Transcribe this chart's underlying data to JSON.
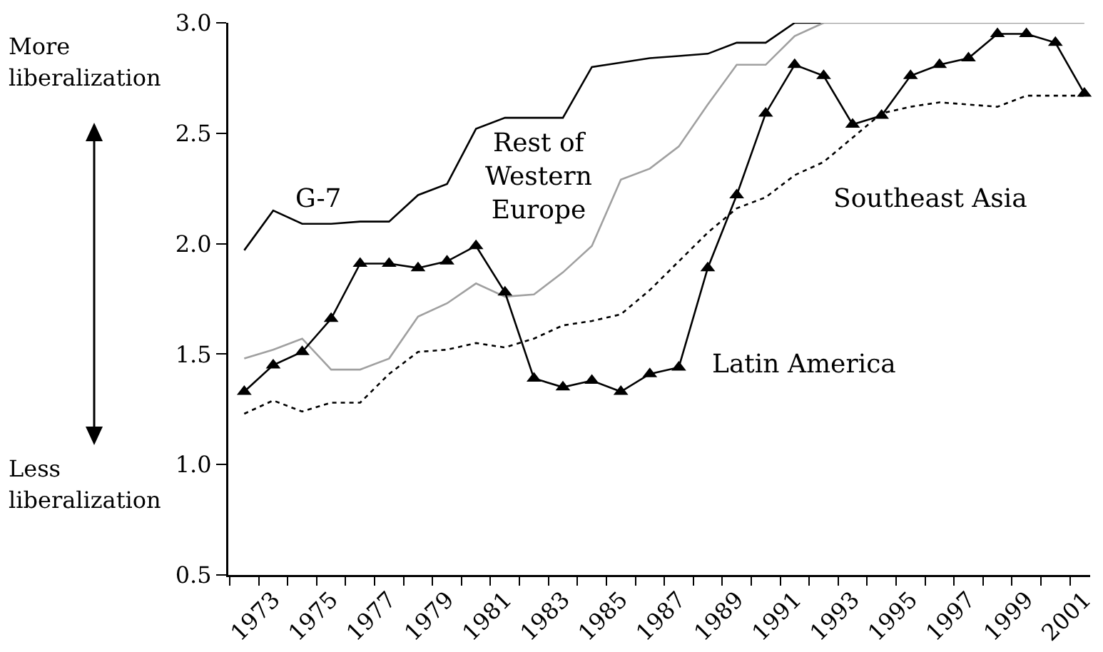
{
  "chart_data": {
    "type": "line",
    "categories": [
      null,
      "1973",
      null,
      "1975",
      null,
      "1977",
      null,
      "1979",
      null,
      "1981",
      null,
      "1983",
      null,
      "1985",
      null,
      "1987",
      null,
      "1989",
      null,
      "1991",
      null,
      "1993",
      null,
      "1995",
      null,
      "1997",
      null,
      "1999",
      null,
      "2001"
    ],
    "series": [
      {
        "name": "G-7",
        "color": "#000000",
        "line_style": "solid",
        "marker": "none",
        "values": [
          1.97,
          2.15,
          2.09,
          2.09,
          2.1,
          2.1,
          2.22,
          2.27,
          2.52,
          2.57,
          2.57,
          2.57,
          2.8,
          2.82,
          2.84,
          2.85,
          2.86,
          2.91,
          2.91,
          3.0,
          3.0,
          null,
          null,
          null,
          null,
          null,
          null,
          null,
          null,
          null
        ]
      },
      {
        "name": "Rest of Western Europe",
        "color": "#a0a0a0",
        "line_style": "solid",
        "marker": "none",
        "values": [
          1.48,
          1.52,
          1.57,
          1.43,
          1.43,
          1.48,
          1.67,
          1.73,
          1.82,
          1.76,
          1.77,
          1.87,
          1.99,
          2.29,
          2.34,
          2.44,
          2.63,
          2.81,
          2.81,
          2.94,
          3.0,
          3.0,
          3.0,
          3.0,
          3.0,
          3.0,
          3.0,
          3.0,
          3.0,
          3.0
        ]
      },
      {
        "name": "Southeast Asia",
        "color": "#000000",
        "line_style": "dotted",
        "marker": "none",
        "values": [
          1.23,
          1.29,
          1.24,
          1.28,
          1.28,
          1.41,
          1.51,
          1.52,
          1.55,
          1.53,
          1.57,
          1.63,
          1.65,
          1.68,
          1.79,
          1.92,
          2.05,
          2.16,
          2.21,
          2.31,
          2.37,
          2.48,
          2.59,
          2.62,
          2.64,
          2.63,
          2.62,
          2.67,
          2.67,
          2.67
        ]
      },
      {
        "name": "Latin America",
        "color": "#000000",
        "line_style": "solid",
        "marker": "triangle",
        "values": [
          1.33,
          1.45,
          1.51,
          1.66,
          1.91,
          1.91,
          1.89,
          1.92,
          1.99,
          1.78,
          1.39,
          1.35,
          1.38,
          1.33,
          1.41,
          1.44,
          1.89,
          2.22,
          2.59,
          2.81,
          2.76,
          2.54,
          2.58,
          2.76,
          2.81,
          2.84,
          2.95,
          2.95,
          2.91,
          2.68
        ]
      }
    ],
    "ylim": [
      0.5,
      3.0
    ],
    "yticks": [
      0.5,
      {
        "value": 1,
        "label": "1.0"
      },
      1.5,
      {
        "value": 2,
        "label": "2.0"
      },
      2.5,
      {
        "value": 3,
        "label": "3.0"
      }
    ],
    "annotations": [
      "More liberalization",
      "Less liberalization"
    ],
    "grid": false,
    "legend": false
  }
}
